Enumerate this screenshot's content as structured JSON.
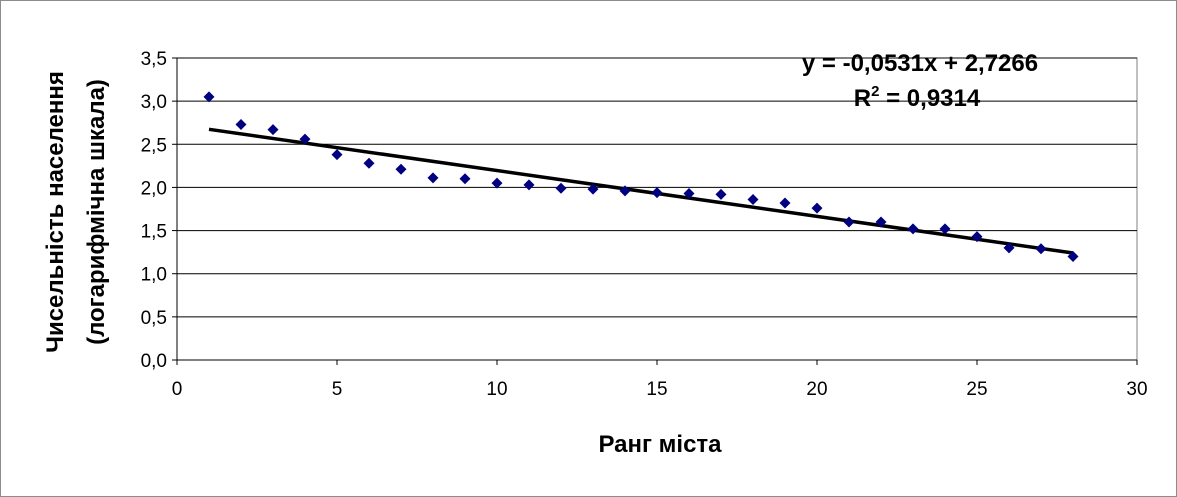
{
  "chart_data": {
    "type": "scatter",
    "title": "",
    "xlabel": "Ранг міста",
    "ylabel": "Чисельність населення",
    "ylabel_line2": "(логарифмічна шкала)",
    "xlim": [
      0,
      30
    ],
    "ylim": [
      0,
      3.5
    ],
    "x_ticks": [
      0,
      5,
      10,
      15,
      20,
      25,
      30
    ],
    "x_tick_labels": [
      "0",
      "5",
      "10",
      "15",
      "20",
      "25",
      "30"
    ],
    "y_ticks": [
      0,
      0.5,
      1.0,
      1.5,
      2.0,
      2.5,
      3.0,
      3.5
    ],
    "y_tick_labels": [
      "0,0",
      "0,5",
      "1,0",
      "1,5",
      "2,0",
      "2,5",
      "3,0",
      "3,5"
    ],
    "grid": "horizontal",
    "legend": "none",
    "points": {
      "x": [
        1,
        2,
        3,
        4,
        5,
        6,
        7,
        8,
        9,
        10,
        11,
        12,
        13,
        14,
        15,
        16,
        17,
        18,
        19,
        20,
        21,
        22,
        23,
        24,
        25,
        26,
        27,
        28
      ],
      "y": [
        3.05,
        2.73,
        2.67,
        2.56,
        2.38,
        2.28,
        2.21,
        2.11,
        2.1,
        2.05,
        2.03,
        1.99,
        1.98,
        1.96,
        1.94,
        1.93,
        1.92,
        1.86,
        1.82,
        1.76,
        1.6,
        1.6,
        1.52,
        1.52,
        1.43,
        1.3,
        1.29,
        1.2
      ]
    },
    "trendline": {
      "slope": -0.0531,
      "intercept": 2.7266,
      "x_range": [
        1,
        28
      ]
    },
    "equation_text": "y = -0,0531x + 2,7266",
    "r2_prefix": "R",
    "r2_sup": "2",
    "r2_value": " = 0,9314",
    "colors": {
      "marker": "#000080",
      "trendline": "#000000",
      "grid": "#000000",
      "plot_background": "#ffffff",
      "frame": "#8c8c8c"
    }
  }
}
